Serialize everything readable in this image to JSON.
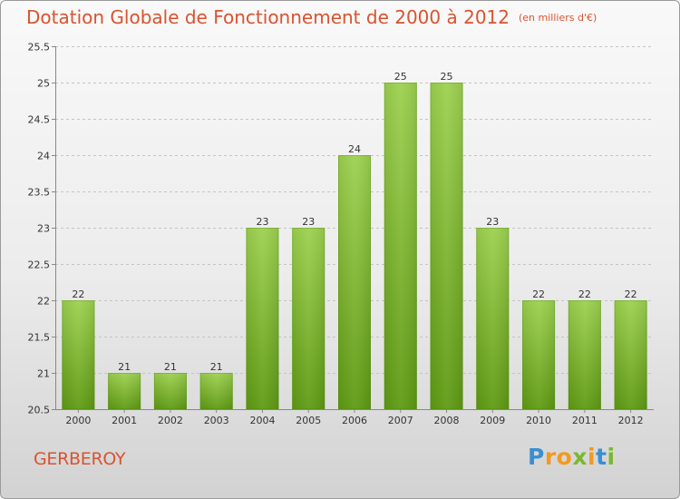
{
  "chart_data": {
    "type": "bar",
    "title": "Dotation Globale de Fonctionnement de 2000 à 2012",
    "subtitle": "(en milliers d'€)",
    "categories": [
      "2000",
      "2001",
      "2002",
      "2003",
      "2004",
      "2005",
      "2006",
      "2007",
      "2008",
      "2009",
      "2010",
      "2011",
      "2012"
    ],
    "values": [
      22,
      21,
      21,
      21,
      23,
      23,
      24,
      25,
      25,
      23,
      22,
      22,
      22
    ],
    "value_labels": [
      "22",
      "21",
      "21",
      "21",
      "23",
      "23",
      "24",
      "25",
      "25",
      "23",
      "22",
      "22",
      "22"
    ],
    "xlabel": "",
    "ylabel": "",
    "ylim": [
      20.5,
      25.5
    ],
    "yticks": [
      "20.5",
      "21",
      "21.5",
      "22",
      "22.5",
      "23",
      "23.5",
      "24",
      "24.5",
      "25",
      "25.5"
    ],
    "grid": "horizontal dashed",
    "colors": {
      "bar_top": "#9dd14f",
      "bar_bottom": "#5e9a12",
      "title": "#d9532f"
    }
  },
  "footer": {
    "commune": "GERBEROY",
    "brand": {
      "letters": [
        "P",
        "r",
        "o",
        "x",
        "i",
        "t",
        "i"
      ],
      "colors": [
        "#3a8fd2",
        "#f39a1e",
        "#f39a1e",
        "#7ab82e",
        "#f39a1e",
        "#3a8fd2",
        "#7ab82e"
      ]
    }
  }
}
